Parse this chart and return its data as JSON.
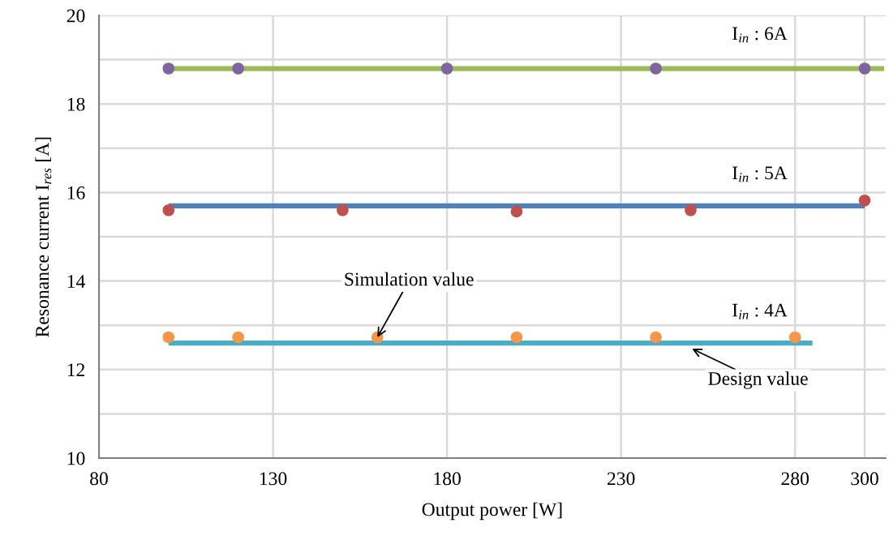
{
  "chart_data": {
    "type": "scatter",
    "xlabel": "Output power [W]",
    "ylabel": "Resonance current I$_{res}$ [A]",
    "xlim": [
      80,
      306
    ],
    "xticks": [
      80,
      130,
      180,
      230,
      280,
      300
    ],
    "ylim": [
      10,
      20
    ],
    "yticks": [
      10,
      {
        "value": 11,
        "label": null
      },
      12,
      {
        "value": 13,
        "label": null
      },
      14,
      {
        "value": 15,
        "label": null
      },
      16,
      {
        "value": 17,
        "label": null
      },
      18,
      {
        "value": 19,
        "label": null
      },
      20
    ],
    "grid": true,
    "series": [
      {
        "type": "line",
        "color": "#9bbb59",
        "x": [
          100,
          305.6
        ],
        "values": [
          18.8,
          18.8
        ]
      },
      {
        "marker": "circle",
        "color": "#8064a2",
        "x": [
          100,
          120,
          180,
          240,
          300
        ],
        "values": [
          18.8,
          18.8,
          18.8,
          18.8,
          18.8
        ]
      },
      {
        "type": "line",
        "color": "#4f81bd",
        "x": [
          100,
          300
        ],
        "values": [
          15.7,
          15.7
        ]
      },
      {
        "marker": "circle",
        "color": "#c0504d",
        "x": [
          100,
          150,
          200,
          250,
          300
        ],
        "values": [
          15.6,
          15.6,
          15.57,
          15.6,
          15.82
        ]
      },
      {
        "type": "line",
        "color": "#4bacc6",
        "x": [
          100,
          285
        ],
        "values": [
          12.6,
          12.6
        ]
      },
      {
        "marker": "circle",
        "color": "#f79646",
        "x": [
          100,
          120,
          160,
          200,
          240,
          280
        ],
        "values": [
          12.73,
          12.73,
          12.73,
          12.73,
          12.73,
          12.73
        ]
      }
    ],
    "annotations": [
      "I$_{in}$ : 6A",
      "I$_{in}$ : 5A",
      "I$_{in}$ : 4A",
      {
        "text": "Simulation value",
        "x": 160,
        "y": 12.73
      },
      {
        "text": "Design value",
        "x": 250.4,
        "y": 12.47
      }
    ]
  }
}
